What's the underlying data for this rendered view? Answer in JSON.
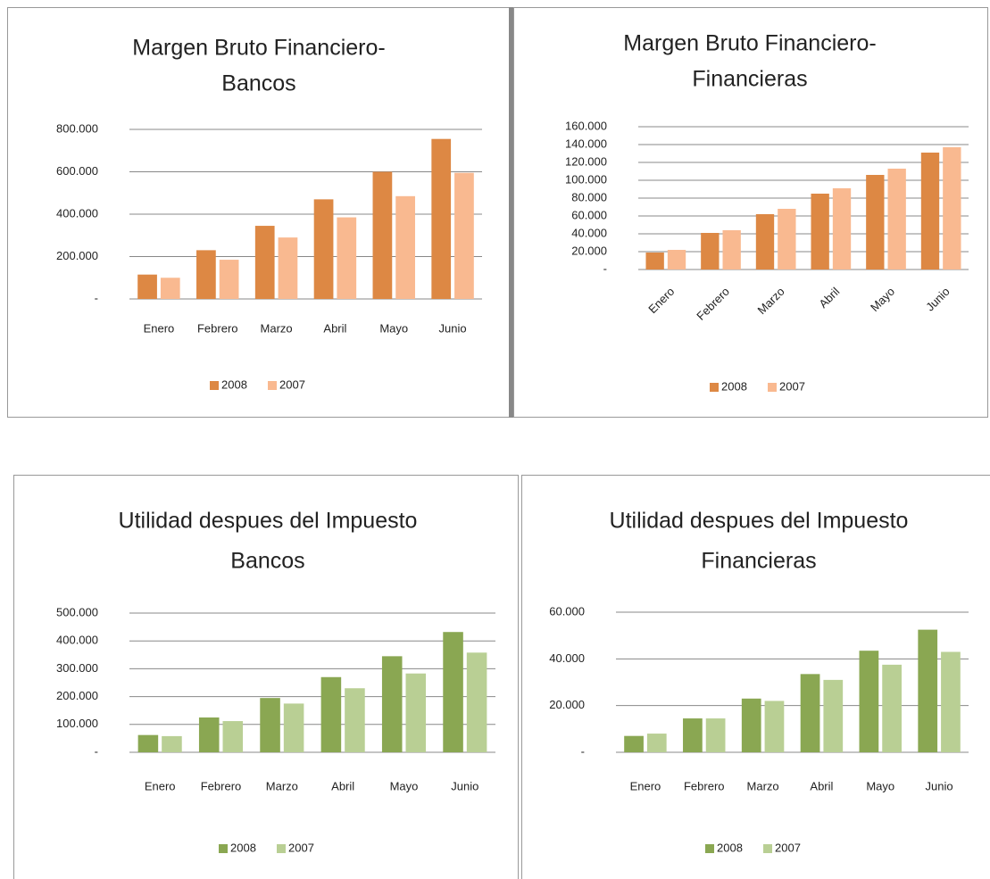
{
  "chart_data": [
    {
      "type": "bar",
      "title": [
        "Margen Bruto Financiero-",
        "Bancos"
      ],
      "categories": [
        "Enero",
        "Febrero",
        "Marzo",
        "Abril",
        "Mayo",
        "Junio"
      ],
      "series": [
        {
          "name": "2008",
          "color": "#dd8844",
          "values": [
            115000,
            230000,
            345000,
            470000,
            600000,
            755000
          ]
        },
        {
          "name": "2007",
          "color": "#f9b990",
          "values": [
            100000,
            185000,
            290000,
            385000,
            485000,
            595000
          ]
        }
      ],
      "ylim": [
        0,
        800000
      ],
      "yticks": [
        {
          "value": 0,
          "label": "-"
        },
        {
          "value": 200000,
          "label": "200.000"
        },
        {
          "value": 400000,
          "label": "400.000"
        },
        {
          "value": 600000,
          "label": "600.000"
        },
        {
          "value": 800000,
          "label": "800.000"
        }
      ],
      "grid": true,
      "legend": "bottom"
    },
    {
      "type": "bar",
      "title": [
        "Margen Bruto Financiero-",
        "Financieras"
      ],
      "categories": [
        "Enero",
        "Febrero",
        "Marzo",
        "Abril",
        "Mayo",
        "Junio"
      ],
      "series": [
        {
          "name": "2008",
          "color": "#dd8844",
          "values": [
            19000,
            41000,
            62000,
            85000,
            106000,
            131000
          ]
        },
        {
          "name": "2007",
          "color": "#f9b990",
          "values": [
            22000,
            44000,
            68000,
            91000,
            113000,
            137000
          ]
        }
      ],
      "ylim": [
        0,
        160000
      ],
      "yticks": [
        {
          "value": 0,
          "label": "-"
        },
        {
          "value": 20000,
          "label": "20.000"
        },
        {
          "value": 40000,
          "label": "40.000"
        },
        {
          "value": 60000,
          "label": "60.000"
        },
        {
          "value": 80000,
          "label": "80.000"
        },
        {
          "value": 100000,
          "label": "100.000"
        },
        {
          "value": 120000,
          "label": "120.000"
        },
        {
          "value": 140000,
          "label": "140.000"
        },
        {
          "value": 160000,
          "label": "160.000"
        }
      ],
      "grid": true,
      "legend": "bottom"
    },
    {
      "type": "bar",
      "title": [
        "Utilidad despues del Impuesto",
        "Bancos"
      ],
      "categories": [
        "Enero",
        "Febrero",
        "Marzo",
        "Abril",
        "Mayo",
        "Junio"
      ],
      "series": [
        {
          "name": "2008",
          "color": "#8aa752",
          "values": [
            62000,
            125000,
            195000,
            270000,
            345000,
            432000
          ]
        },
        {
          "name": "2007",
          "color": "#b9cf94",
          "values": [
            58000,
            112000,
            175000,
            230000,
            283000,
            358000
          ]
        }
      ],
      "ylim": [
        0,
        500000
      ],
      "yticks": [
        {
          "value": 0,
          "label": "-"
        },
        {
          "value": 100000,
          "label": "100.000"
        },
        {
          "value": 200000,
          "label": "200.000"
        },
        {
          "value": 300000,
          "label": "300.000"
        },
        {
          "value": 400000,
          "label": "400.000"
        },
        {
          "value": 500000,
          "label": "500.000"
        }
      ],
      "grid": true,
      "legend": "bottom"
    },
    {
      "type": "bar",
      "title": [
        "Utilidad despues del Impuesto",
        "Financieras"
      ],
      "categories": [
        "Enero",
        "Febrero",
        "Marzo",
        "Abril",
        "Mayo",
        "Junio"
      ],
      "series": [
        {
          "name": "2008",
          "color": "#8aa752",
          "values": [
            7000,
            14500,
            23000,
            33500,
            43500,
            52500
          ]
        },
        {
          "name": "2007",
          "color": "#b9cf94",
          "values": [
            8000,
            14500,
            22000,
            31000,
            37500,
            43000
          ]
        }
      ],
      "ylim": [
        0,
        60000
      ],
      "yticks": [
        {
          "value": 0,
          "label": "-"
        },
        {
          "value": 20000,
          "label": "20.000"
        },
        {
          "value": 40000,
          "label": "40.000"
        },
        {
          "value": 60000,
          "label": "60.000"
        }
      ],
      "grid": true,
      "legend": "bottom"
    }
  ]
}
